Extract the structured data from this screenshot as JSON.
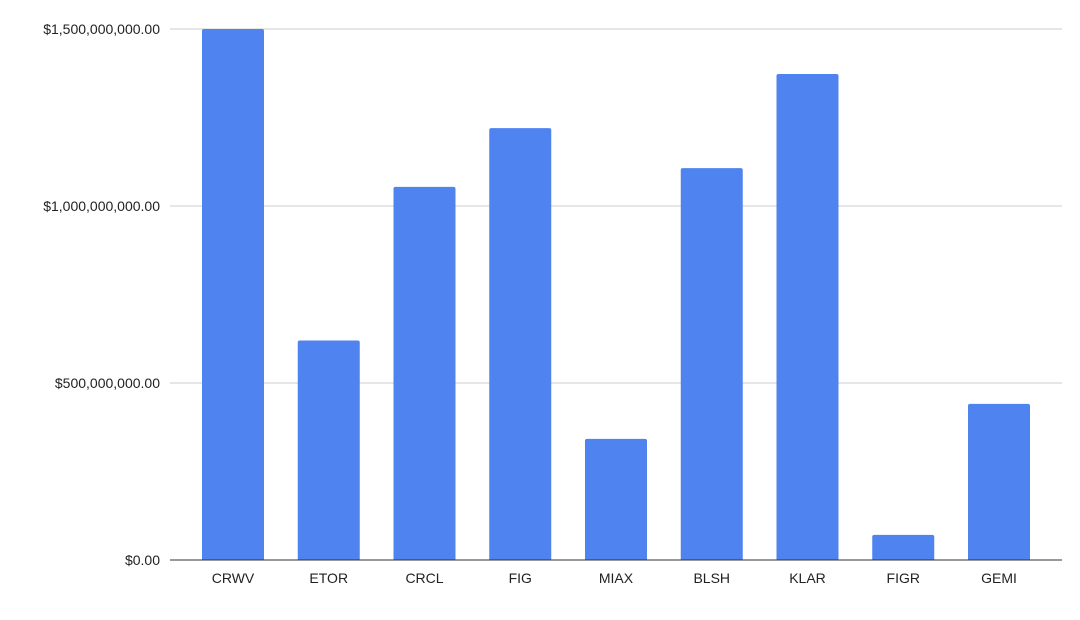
{
  "chart_data": {
    "type": "bar",
    "title": "",
    "xlabel": "",
    "ylabel": "",
    "categories": [
      "CRWV",
      "ETOR",
      "CRCL",
      "FIG",
      "MIAX",
      "BLSH",
      "KLAR",
      "FIGR",
      "GEMI"
    ],
    "values": [
      1500000000,
      620000000,
      1054000000,
      1220000000,
      342000000,
      1107000000,
      1373000000,
      71000000,
      441000000
    ],
    "ylim": [
      0,
      1500000000
    ],
    "yticks": [
      0,
      500000000,
      1000000000,
      1500000000
    ],
    "ytick_labels": [
      "$0.00",
      "$500,000,000.00",
      "$1,000,000,000.00",
      "$1,500,000,000.00"
    ],
    "grid": true,
    "legend": "none",
    "bar_color": "#4f83f0",
    "grid_color": "#cccccc",
    "axis_color": "#333333"
  }
}
